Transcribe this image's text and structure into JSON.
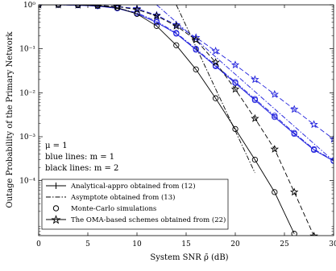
{
  "chart_data": {
    "type": "line",
    "xlabel": "System SNR ρ̄ (dB)",
    "ylabel": "Outage Probability of the Primary Network",
    "xlim": [
      0,
      30
    ],
    "ylim_log10": [
      -5.25,
      0
    ],
    "yscale": "log",
    "grid": false,
    "x_ticks": [
      0,
      5,
      10,
      15,
      20,
      25,
      30
    ],
    "x_tick_labels": [
      "0",
      "5",
      "10",
      "15",
      "20",
      "25",
      "30"
    ],
    "y_ticks_log10": [
      0,
      -1,
      -2,
      -3,
      -4
    ],
    "y_tick_labels": [
      "10⁰",
      "10⁻¹",
      "10⁻²",
      "10⁻³",
      "10⁻⁴"
    ],
    "annotations": [
      "μ = 1",
      "blue lines: m = 1",
      "black lines: m = 2"
    ],
    "colors": {
      "blue": "#1f1fdc",
      "black": "#000000"
    },
    "legend": {
      "placement": "bottom-left",
      "entries": [
        "Analytical-appro obtained from (12)",
        "Asymptote obtained from (13)",
        "Monte-Carlo simulations",
        "The OMA-based schemes obtained from (22)"
      ]
    },
    "series": [
      {
        "group": "blue m=1, line 1",
        "color": "blue",
        "style": "solid",
        "marker": "circle",
        "x": [
          0,
          2,
          4,
          6,
          8,
          10,
          12,
          14,
          16,
          18,
          20,
          22,
          24,
          26,
          28,
          30
        ],
        "y": [
          0.999,
          0.996,
          0.98,
          0.93,
          0.83,
          0.63,
          0.4,
          0.22,
          0.095,
          0.04,
          0.0165,
          0.0068,
          0.0028,
          0.00116,
          0.0005,
          0.00028
        ]
      },
      {
        "group": "blue m=1, line 2",
        "color": "blue",
        "style": "dashdot",
        "marker": "circle",
        "x": [
          0,
          2,
          4,
          6,
          8,
          10,
          12,
          14,
          16,
          18,
          20,
          22,
          24,
          26,
          28,
          30
        ],
        "y": [
          0.999,
          0.996,
          0.98,
          0.94,
          0.84,
          0.66,
          0.42,
          0.23,
          0.1,
          0.042,
          0.0175,
          0.0072,
          0.003,
          0.00122,
          0.00052,
          0.00029
        ]
      },
      {
        "group": "blue m=1, asymptote",
        "color": "blue",
        "style": "dashdot",
        "marker": "none",
        "x": [
          12,
          30
        ],
        "y": [
          1.0,
          0.00028
        ]
      },
      {
        "group": "blue m=1, OMA",
        "color": "blue",
        "style": "dashed",
        "marker": "star",
        "x": [
          0,
          2,
          4,
          6,
          8,
          10,
          12,
          14,
          16,
          18,
          20,
          22,
          24,
          26,
          28,
          30
        ],
        "y": [
          0.999,
          0.998,
          0.99,
          0.97,
          0.92,
          0.82,
          0.58,
          0.35,
          0.18,
          0.089,
          0.043,
          0.02,
          0.0092,
          0.0042,
          0.0019,
          0.00088
        ]
      },
      {
        "group": "black m=2, analytical",
        "color": "black",
        "style": "solid",
        "marker": "circle",
        "x": [
          0,
          2,
          4,
          6,
          8,
          10,
          12,
          14,
          16,
          18,
          20,
          22,
          24,
          26
        ],
        "y": [
          0.999,
          0.998,
          0.99,
          0.96,
          0.86,
          0.62,
          0.33,
          0.12,
          0.034,
          0.0075,
          0.0015,
          0.0003,
          5.5e-05,
          6.2e-06
        ]
      },
      {
        "group": "black m=2, asymptote",
        "color": "black",
        "style": "dashdot",
        "marker": "none",
        "x": [
          14,
          22
        ],
        "y": [
          1.0,
          0.00015
        ]
      },
      {
        "group": "black m=2, OMA",
        "color": "black",
        "style": "dashed",
        "marker": "star",
        "x": [
          0,
          2,
          4,
          6,
          8,
          10,
          12,
          14,
          16,
          18,
          20,
          22,
          24,
          26,
          28
        ],
        "y": [
          0.999,
          0.999,
          0.99,
          0.97,
          0.91,
          0.78,
          0.56,
          0.33,
          0.16,
          0.049,
          0.012,
          0.0026,
          0.00052,
          5.5e-05,
          5.5e-06
        ]
      }
    ]
  }
}
